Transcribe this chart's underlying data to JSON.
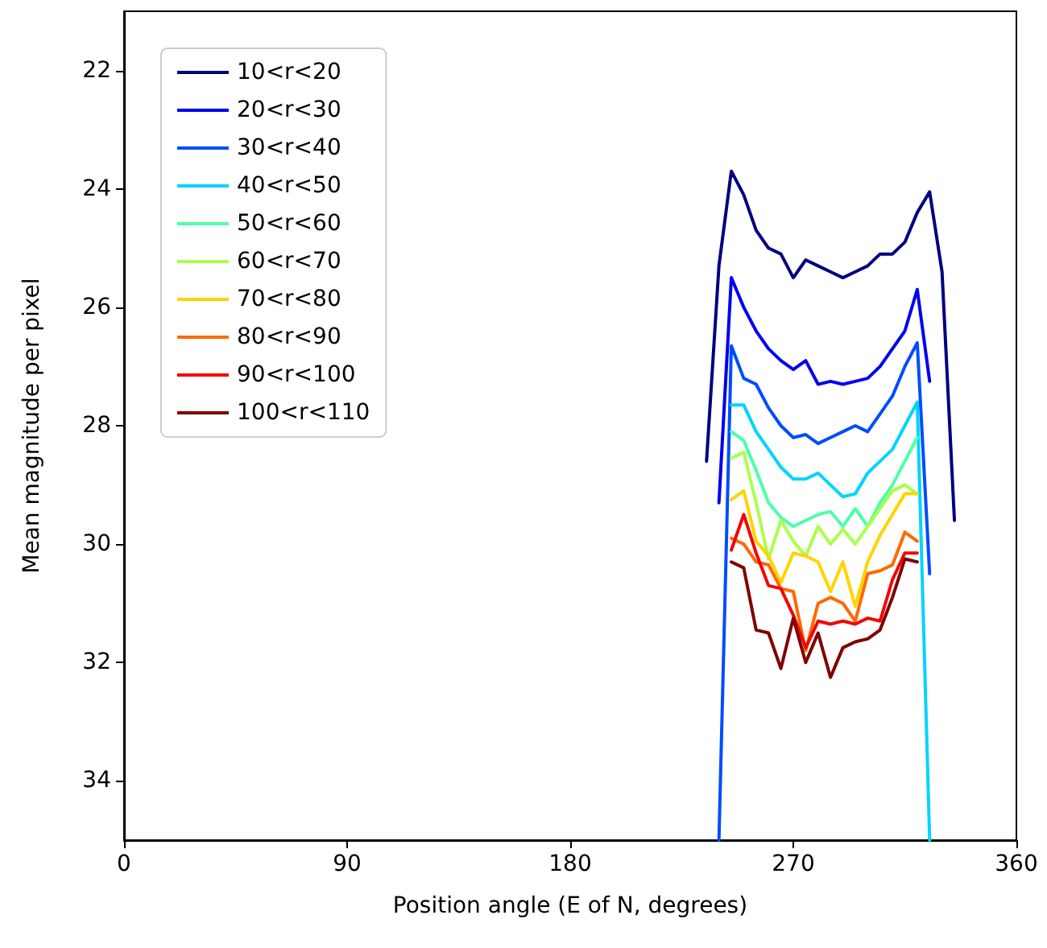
{
  "chart_data": {
    "type": "line",
    "xlabel": "Position angle (E of N, degrees)",
    "ylabel": "Mean magnitude per pixel",
    "xlim": [
      0,
      360
    ],
    "xticks": [
      0,
      90,
      180,
      270,
      360
    ],
    "ylim": [
      35,
      21
    ],
    "yticks": [
      22,
      24,
      26,
      28,
      30,
      32,
      34
    ],
    "grid": false,
    "legend": "top left",
    "marker": "none",
    "line_style": "solid",
    "series": [
      {
        "name": "10<r<20",
        "color": "#000080",
        "x": [
          235,
          240,
          245,
          250,
          255,
          260,
          265,
          270,
          275,
          280,
          285,
          290,
          295,
          300,
          305,
          310,
          315,
          320,
          325,
          330,
          335
        ],
        "values": [
          28.6,
          25.3,
          23.7,
          24.1,
          24.7,
          25.0,
          25.1,
          25.5,
          25.2,
          25.3,
          25.4,
          25.5,
          25.4,
          25.3,
          25.1,
          25.1,
          24.9,
          24.4,
          24.05,
          25.4,
          29.6
        ]
      },
      {
        "name": "20<r<30",
        "color": "#0000f1",
        "x": [
          240,
          245,
          250,
          255,
          260,
          265,
          270,
          275,
          280,
          285,
          290,
          295,
          300,
          305,
          310,
          315,
          320,
          325
        ],
        "values": [
          29.3,
          25.5,
          26.0,
          26.4,
          26.7,
          26.9,
          27.05,
          26.9,
          27.3,
          27.25,
          27.3,
          27.25,
          27.2,
          27.0,
          26.7,
          26.4,
          25.7,
          27.25
        ]
      },
      {
        "name": "30<r<40",
        "color": "#004cff",
        "x": [
          240,
          245,
          250,
          255,
          260,
          265,
          270,
          275,
          280,
          285,
          290,
          295,
          300,
          305,
          310,
          315,
          320,
          325
        ],
        "values": [
          35,
          26.65,
          27.2,
          27.3,
          27.7,
          28.0,
          28.2,
          28.15,
          28.3,
          28.2,
          28.1,
          28.0,
          28.1,
          27.8,
          27.5,
          27.0,
          26.6,
          30.5
        ]
      },
      {
        "name": "40<r<50",
        "color": "#00d4ff",
        "x": [
          245,
          250,
          255,
          260,
          265,
          270,
          275,
          280,
          285,
          290,
          295,
          300,
          305,
          310,
          315,
          320,
          325
        ],
        "values": [
          27.65,
          27.65,
          28.1,
          28.4,
          28.7,
          28.9,
          28.9,
          28.8,
          29.0,
          29.2,
          29.15,
          28.8,
          28.6,
          28.4,
          28.0,
          27.6,
          35
        ]
      },
      {
        "name": "50<r<60",
        "color": "#4dffaa",
        "x": [
          245,
          250,
          255,
          260,
          265,
          270,
          275,
          280,
          285,
          290,
          295,
          300,
          305,
          310,
          315,
          320
        ],
        "values": [
          28.1,
          28.25,
          28.75,
          29.3,
          29.55,
          29.7,
          29.6,
          29.5,
          29.45,
          29.7,
          29.4,
          29.7,
          29.3,
          29.0,
          28.6,
          28.2
        ]
      },
      {
        "name": "60<r<70",
        "color": "#aaff4d",
        "x": [
          245,
          250,
          255,
          260,
          265,
          270,
          275,
          280,
          285,
          290,
          295,
          300,
          305,
          310,
          315,
          320
        ],
        "values": [
          28.55,
          28.45,
          29.3,
          30.25,
          29.6,
          29.95,
          30.2,
          29.7,
          30.0,
          29.75,
          30.0,
          29.7,
          29.4,
          29.1,
          29.0,
          29.15
        ]
      },
      {
        "name": "70<r<80",
        "color": "#ffd400",
        "x": [
          245,
          250,
          255,
          260,
          265,
          270,
          275,
          280,
          285,
          290,
          295,
          300,
          305,
          310,
          315,
          320
        ],
        "values": [
          29.25,
          29.1,
          29.95,
          30.2,
          30.65,
          30.15,
          30.2,
          30.3,
          30.8,
          30.3,
          31.05,
          30.3,
          29.85,
          29.5,
          29.15,
          29.15
        ]
      },
      {
        "name": "80<r<90",
        "color": "#ff6800",
        "x": [
          245,
          250,
          255,
          260,
          265,
          270,
          275,
          280,
          285,
          290,
          295,
          300,
          305,
          310,
          315,
          320
        ],
        "values": [
          29.9,
          30.0,
          30.3,
          30.35,
          30.75,
          30.8,
          31.8,
          31.0,
          30.9,
          31.0,
          31.3,
          30.5,
          30.45,
          30.35,
          29.8,
          29.95
        ]
      },
      {
        "name": "90<r<100",
        "color": "#f10800",
        "x": [
          245,
          250,
          255,
          260,
          265,
          270,
          275,
          280,
          285,
          290,
          295,
          300,
          305,
          310,
          315,
          320
        ],
        "values": [
          30.1,
          29.5,
          30.15,
          30.7,
          30.75,
          31.2,
          31.75,
          31.3,
          31.35,
          31.3,
          31.35,
          31.25,
          31.3,
          30.6,
          30.15,
          30.15
        ]
      },
      {
        "name": "100<r<110",
        "color": "#800000",
        "x": [
          245,
          250,
          255,
          260,
          265,
          270,
          275,
          280,
          285,
          290,
          295,
          300,
          305,
          310,
          315,
          320
        ],
        "values": [
          30.3,
          30.4,
          31.45,
          31.5,
          32.1,
          31.25,
          32.0,
          31.5,
          32.25,
          31.75,
          31.65,
          31.6,
          31.45,
          30.9,
          30.25,
          30.3
        ]
      }
    ]
  }
}
